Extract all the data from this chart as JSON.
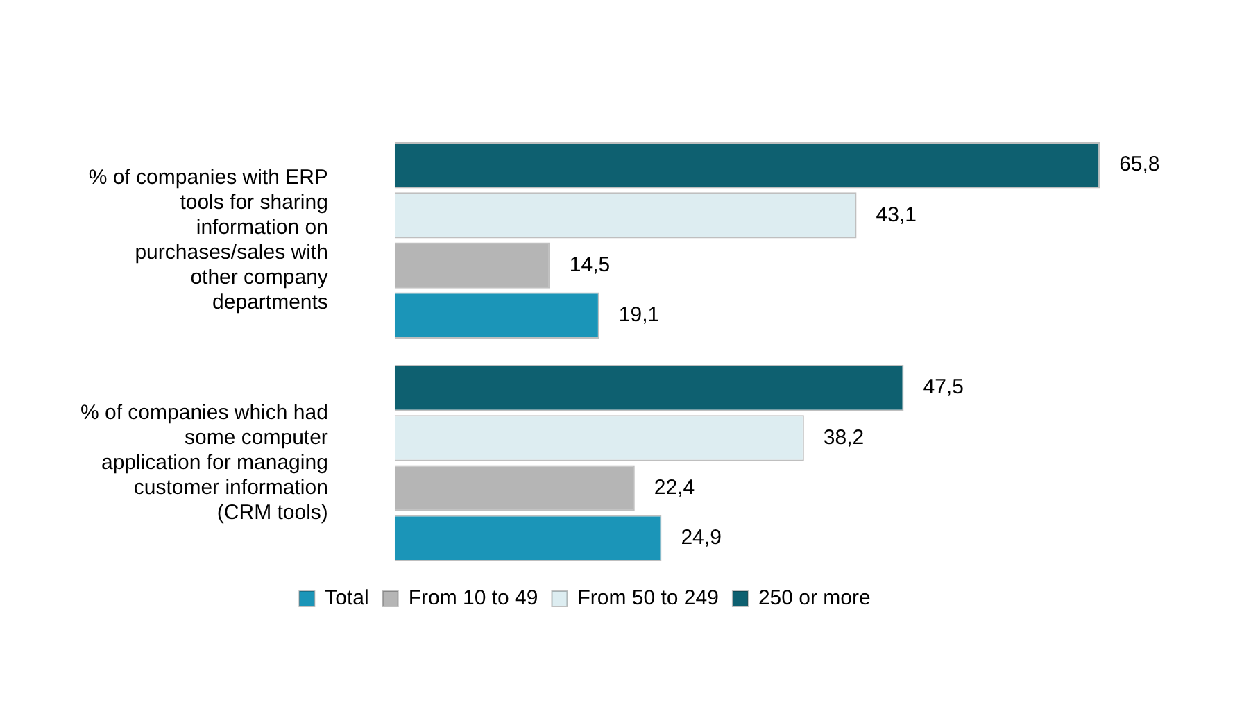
{
  "chart_data": {
    "type": "bar",
    "orientation": "horizontal",
    "categories": [
      "% of companies with ERP tools for sharing information on purchases/sales with other company departments",
      "% of companies which had some computer application for managing customer information (CRM tools)"
    ],
    "series": [
      {
        "name": "250 or more",
        "color": "#0e6070",
        "values": [
          65.8,
          47.5
        ],
        "value_labels": [
          "65,8",
          "47,5"
        ]
      },
      {
        "name": "From 50 to 249",
        "color": "#ddedf1",
        "values": [
          43.1,
          38.2
        ],
        "value_labels": [
          "43,1",
          "38,2"
        ]
      },
      {
        "name": "From 10 to 49",
        "color": "#b5b5b5",
        "values": [
          14.5,
          22.4
        ],
        "value_labels": [
          "14,5",
          "22,4"
        ]
      },
      {
        "name": "Total",
        "color": "#1b95b8",
        "values": [
          19.1,
          24.9
        ],
        "value_labels": [
          "19,1",
          "24,9"
        ]
      }
    ],
    "legend": "bottom"
  }
}
